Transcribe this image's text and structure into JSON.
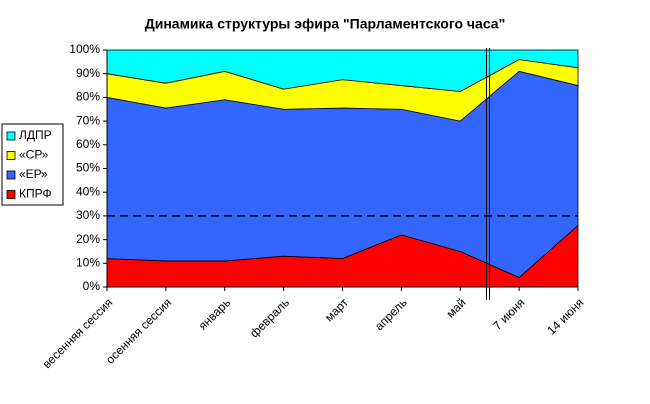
{
  "chart_data": {
    "type": "stacked_area",
    "title": "Динамика структуры эфира \"Парламентского часа\"",
    "categories": [
      "весенняя сессия",
      "осенняя сессия",
      "январь",
      "февраль",
      "март",
      "апрель",
      "май",
      "7 июня",
      "14 июня"
    ],
    "series": [
      {
        "name": "КПРФ",
        "color": "#ff0000",
        "values": [
          12,
          11,
          11,
          13,
          12,
          22,
          15,
          4,
          26
        ]
      },
      {
        "name": "«ЕР»",
        "color": "#3366ff",
        "values": [
          68,
          64.5,
          68,
          62,
          63.5,
          53,
          55,
          87,
          59
        ]
      },
      {
        "name": "«СР»",
        "color": "#ffff00",
        "values": [
          10,
          10.5,
          12,
          8.5,
          12,
          10,
          12.5,
          5,
          7.5
        ]
      },
      {
        "name": "ЛДПР",
        "color": "#00ffff",
        "values": [
          10,
          14,
          9,
          16.5,
          12.5,
          15,
          17.5,
          4,
          7.5
        ]
      }
    ],
    "ylim": [
      0,
      100
    ],
    "yticks": [
      {
        "value": 0,
        "label": "0%"
      },
      {
        "value": 10,
        "label": "10%"
      },
      {
        "value": 20,
        "label": "20%"
      },
      {
        "value": 30,
        "label": "30%"
      },
      {
        "value": 40,
        "label": "40%"
      },
      {
        "value": 50,
        "label": "50%"
      },
      {
        "value": 60,
        "label": "60%"
      },
      {
        "value": 70,
        "label": "70%"
      },
      {
        "value": 80,
        "label": "80%"
      },
      {
        "value": 90,
        "label": "90%"
      },
      {
        "value": 100,
        "label": "100%"
      }
    ],
    "reference_line": 30,
    "legend": "left"
  }
}
